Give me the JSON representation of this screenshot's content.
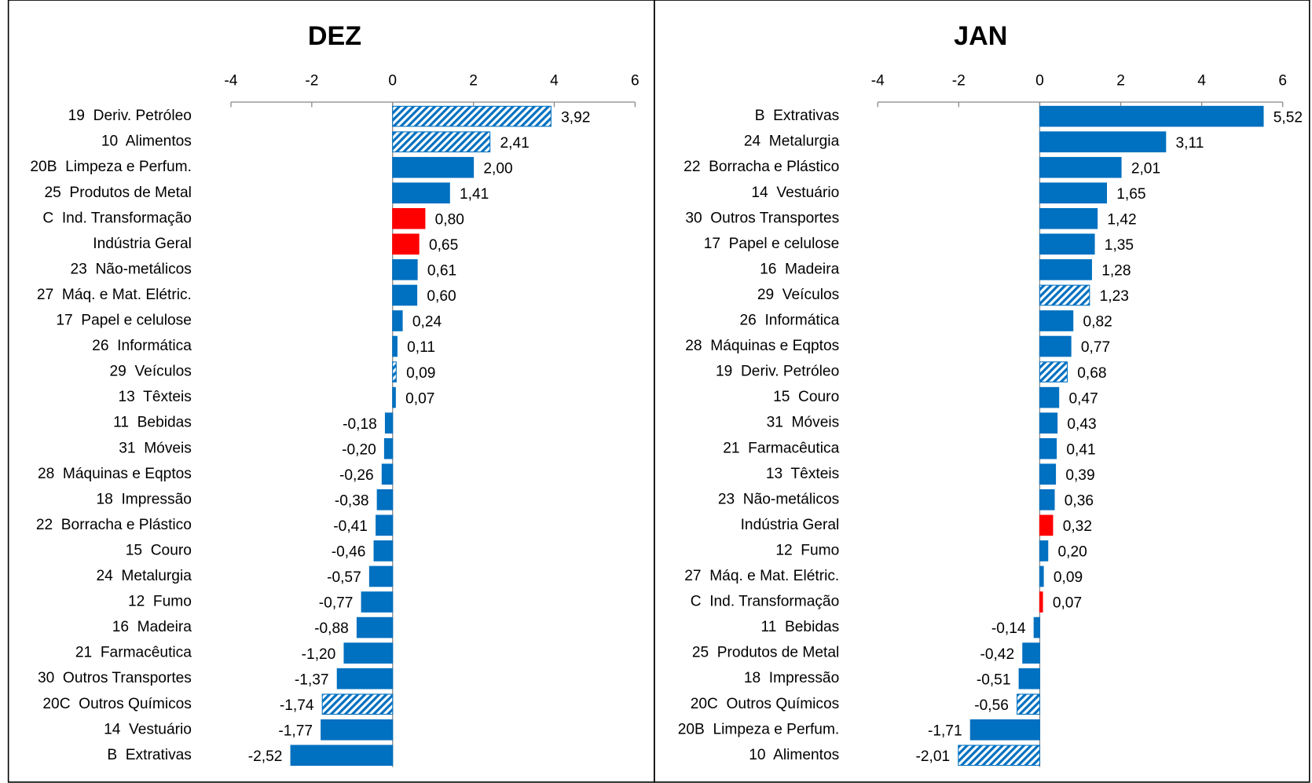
{
  "chart_data": [
    {
      "type": "barh",
      "title": "DEZ",
      "categories": [
        "19  Deriv. Petróleo",
        "10  Alimentos",
        "20B  Limpeza e Perfum.",
        "25  Produtos de Metal",
        "C  Ind. Transformação",
        "Indústria Geral",
        "23  Não-metálicos",
        "27  Máq. e Mat. Elétric.",
        "17  Papel e celulose",
        "26  Informática",
        "29  Veículos",
        "13  Têxteis",
        "11  Bebidas",
        "31  Móveis",
        "28  Máquinas e Eqptos",
        "18  Impressão",
        "22  Borracha e Plástico",
        "15  Couro",
        "24  Metalurgia",
        "12  Fumo",
        "16  Madeira",
        "21  Farmacêutica",
        "30  Outros Transportes",
        "20C  Outros Químicos",
        "14  Vestuário",
        "B  Extrativas"
      ],
      "values": [
        3.92,
        2.41,
        2.0,
        1.41,
        0.8,
        0.65,
        0.61,
        0.6,
        0.24,
        0.11,
        0.09,
        0.07,
        -0.18,
        -0.2,
        -0.26,
        -0.38,
        -0.41,
        -0.46,
        -0.57,
        -0.77,
        -0.88,
        -1.2,
        -1.37,
        -1.74,
        -1.77,
        -2.52
      ],
      "value_labels": [
        "3,92",
        "2,41",
        "2,00",
        "1,41",
        "0,80",
        "0,65",
        "0,61",
        "0,60",
        "0,24",
        "0,11",
        "0,09",
        "0,07",
        "-0,18",
        "-0,20",
        "-0,26",
        "-0,38",
        "-0,41",
        "-0,46",
        "-0,57",
        "-0,77",
        "-0,88",
        "-1,20",
        "-1,37",
        "-1,74",
        "-1,77",
        "-2,52"
      ],
      "colors": [
        "#0070c0",
        "#0070c0",
        "#0070c0",
        "#0070c0",
        "#ff0000",
        "#ff0000",
        "#0070c0",
        "#0070c0",
        "#0070c0",
        "#0070c0",
        "#0070c0",
        "#0070c0",
        "#0070c0",
        "#0070c0",
        "#0070c0",
        "#0070c0",
        "#0070c0",
        "#0070c0",
        "#0070c0",
        "#0070c0",
        "#0070c0",
        "#0070c0",
        "#0070c0",
        "#0070c0",
        "#0070c0",
        "#0070c0"
      ],
      "hatched": [
        true,
        true,
        false,
        false,
        false,
        false,
        false,
        false,
        false,
        false,
        true,
        false,
        false,
        false,
        false,
        false,
        false,
        false,
        false,
        false,
        false,
        false,
        false,
        true,
        false,
        false
      ],
      "xlim": [
        -4,
        6
      ],
      "xticks": [
        -4,
        -2,
        0,
        2,
        4,
        6
      ]
    },
    {
      "type": "barh",
      "title": "JAN",
      "categories": [
        "B  Extrativas",
        "24  Metalurgia",
        "22  Borracha e Plástico",
        "14  Vestuário",
        "30  Outros Transportes",
        "17  Papel e celulose",
        "16  Madeira",
        "29  Veículos",
        "26  Informática",
        "28  Máquinas e Eqptos",
        "19  Deriv. Petróleo",
        "15  Couro",
        "31  Móveis",
        "21  Farmacêutica",
        "13  Têxteis",
        "23  Não-metálicos",
        "Indústria Geral",
        "12  Fumo",
        "27  Máq. e Mat. Elétric.",
        "C  Ind. Transformação",
        "11  Bebidas",
        "25  Produtos de Metal",
        "18  Impressão",
        "20C  Outros Químicos",
        "20B  Limpeza e Perfum.",
        "10  Alimentos"
      ],
      "values": [
        5.52,
        3.11,
        2.01,
        1.65,
        1.42,
        1.35,
        1.28,
        1.23,
        0.82,
        0.77,
        0.68,
        0.47,
        0.43,
        0.41,
        0.39,
        0.36,
        0.32,
        0.2,
        0.09,
        0.07,
        -0.14,
        -0.42,
        -0.51,
        -0.56,
        -1.71,
        -2.01
      ],
      "value_labels": [
        "5,52",
        "3,11",
        "2,01",
        "1,65",
        "1,42",
        "1,35",
        "1,28",
        "1,23",
        "0,82",
        "0,77",
        "0,68",
        "0,47",
        "0,43",
        "0,41",
        "0,39",
        "0,36",
        "0,32",
        "0,20",
        "0,09",
        "0,07",
        "-0,14",
        "-0,42",
        "-0,51",
        "-0,56",
        "-1,71",
        "-2,01"
      ],
      "colors": [
        "#0070c0",
        "#0070c0",
        "#0070c0",
        "#0070c0",
        "#0070c0",
        "#0070c0",
        "#0070c0",
        "#0070c0",
        "#0070c0",
        "#0070c0",
        "#0070c0",
        "#0070c0",
        "#0070c0",
        "#0070c0",
        "#0070c0",
        "#0070c0",
        "#ff0000",
        "#0070c0",
        "#0070c0",
        "#ff0000",
        "#0070c0",
        "#0070c0",
        "#0070c0",
        "#0070c0",
        "#0070c0",
        "#0070c0"
      ],
      "hatched": [
        false,
        false,
        false,
        false,
        false,
        false,
        false,
        true,
        false,
        false,
        true,
        false,
        false,
        false,
        false,
        false,
        false,
        false,
        false,
        false,
        false,
        false,
        false,
        true,
        false,
        true
      ],
      "xlim": [
        -4,
        6
      ],
      "xticks": [
        -4,
        -2,
        0,
        2,
        4,
        6
      ]
    }
  ]
}
